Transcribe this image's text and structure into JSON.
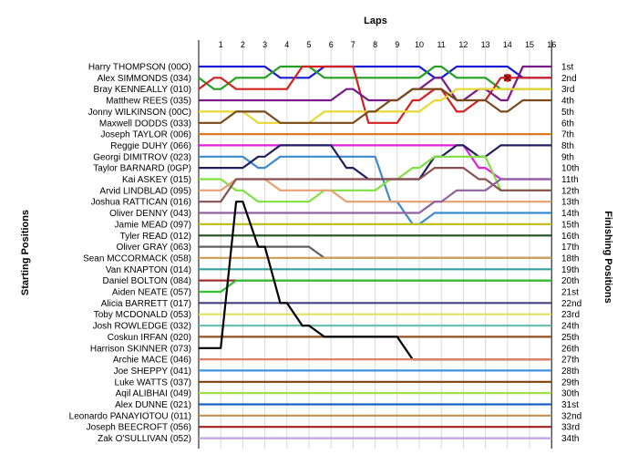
{
  "chart_data": {
    "type": "line",
    "title": "Laps",
    "xlabel": "Laps",
    "left_axis_title": "Starting Positions",
    "right_axis_title": "Finishing Positions",
    "laps": [
      "1",
      "2",
      "3",
      "4",
      "5",
      "6",
      "7",
      "8",
      "9",
      "10",
      "11",
      "12",
      "13",
      "14",
      "15",
      "16"
    ],
    "finishing_labels": [
      "1st",
      "2nd",
      "3rd",
      "4th",
      "5th",
      "6th",
      "7th",
      "8th",
      "9th",
      "10th",
      "11th",
      "12th",
      "13th",
      "14th",
      "15th",
      "16th",
      "17th",
      "18th",
      "19th",
      "20th",
      "21st",
      "22nd",
      "23rd",
      "24th",
      "25th",
      "26th",
      "27th",
      "28th",
      "29th",
      "30th",
      "31st",
      "32nd",
      "33rd",
      "34th"
    ],
    "grid": "vertical",
    "retirement_marker": {
      "lap": 14,
      "position": 2
    },
    "drivers": [
      {
        "name": "Harry THOMPSON (00O)",
        "color": "#1a1ad6",
        "positions": [
          1,
          1,
          1,
          2,
          2,
          1,
          1,
          1,
          1,
          1,
          2,
          1,
          1,
          1,
          2,
          2
        ]
      },
      {
        "name": "Alex SIMMONDS (034)",
        "color": "#22a022",
        "positions": [
          3,
          2,
          2,
          1,
          1,
          2,
          2,
          2,
          2,
          2,
          1,
          2,
          2,
          3,
          3,
          3
        ]
      },
      {
        "name": "Bray KENNEALLY (010)",
        "color": "#d42020",
        "positions": [
          2,
          3,
          3,
          3,
          1,
          1,
          1,
          6,
          6,
          4,
          3,
          5,
          4,
          2,
          2,
          2
        ]
      },
      {
        "name": "Matthew REES (035)",
        "color": "#7a1a8a",
        "positions": [
          4,
          4,
          4,
          4,
          4,
          4,
          3,
          4,
          4,
          3,
          2,
          4,
          3,
          4,
          1,
          1
        ]
      },
      {
        "name": "Jonny WILKINSON (00C)",
        "color": "#e8d830",
        "positions": [
          5,
          5,
          6,
          6,
          6,
          5,
          5,
          5,
          5,
          5,
          4,
          3,
          3,
          3,
          3,
          3
        ]
      },
      {
        "name": "Maxwell DODDS (033)",
        "color": "#7a4a1a",
        "positions": [
          6,
          5,
          5,
          6,
          6,
          6,
          6,
          5,
          4,
          3,
          3,
          4,
          4,
          5,
          4,
          4
        ]
      },
      {
        "name": "Joseph TAYLOR (006)",
        "color": "#e07820",
        "positions": [
          7,
          7,
          7,
          7,
          7,
          7,
          7,
          7,
          7,
          7,
          7,
          7,
          7,
          7,
          7,
          7
        ]
      },
      {
        "name": "Reggie DUHY (066)",
        "color": "#e020e0",
        "positions": [
          8,
          8,
          8,
          8,
          8,
          8,
          8,
          8,
          8,
          8,
          8,
          8,
          10,
          11,
          11,
          11
        ]
      },
      {
        "name": "Georgi DIMITROV (023)",
        "color": "#3a8ad0",
        "positions": [
          9,
          9,
          10,
          9,
          9,
          9,
          9,
          9,
          13,
          15,
          14,
          14,
          14,
          14,
          14,
          14
        ]
      },
      {
        "name": "Taylor BARNARD (0GP)",
        "color": "#202060",
        "positions": [
          10,
          10,
          9,
          8,
          8,
          8,
          10,
          11,
          11,
          11,
          9,
          8,
          9,
          8,
          8,
          8
        ]
      },
      {
        "name": "Kai ASKEY (015)",
        "color": "#80e040",
        "positions": [
          11,
          12,
          13,
          13,
          13,
          12,
          12,
          12,
          11,
          10,
          9,
          9,
          9,
          12,
          12,
          12
        ]
      },
      {
        "name": "Arvid LINDBLAD (095)",
        "color": "#e8a070",
        "positions": [
          12,
          11,
          11,
          12,
          12,
          12,
          13,
          13,
          13,
          13,
          13,
          13,
          13,
          13,
          13,
          13
        ]
      },
      {
        "name": "Joshua RATTICAN (016)",
        "color": "#8a5050",
        "positions": [
          13,
          11,
          11,
          11,
          11,
          11,
          11,
          11,
          11,
          11,
          10,
          10,
          11,
          12,
          12,
          12
        ]
      },
      {
        "name": "Oliver DENNY (043)",
        "color": "#9060a0",
        "positions": [
          14,
          14,
          14,
          14,
          14,
          14,
          14,
          14,
          14,
          14,
          13,
          12,
          12,
          11,
          11,
          11
        ]
      },
      {
        "name": "Jamie MEAD (097)",
        "color": "#c0c020",
        "positions": [
          15,
          15,
          15,
          15,
          15,
          15,
          15,
          15,
          15,
          15,
          15,
          15,
          15,
          15,
          15,
          15
        ]
      },
      {
        "name": "Tyler READ (012)",
        "color": "#205020",
        "positions": [
          16,
          16,
          16,
          16,
          16,
          16,
          16,
          16,
          16,
          16,
          16,
          16,
          16,
          16,
          16,
          16
        ]
      },
      {
        "name": "Oliver GRAY (063)",
        "color": "#606060",
        "positions": [
          17,
          17,
          17,
          17,
          17,
          18,
          18,
          18,
          18,
          18,
          18,
          18,
          18,
          18,
          18,
          18
        ]
      },
      {
        "name": "Sean MCCORMACK (058)",
        "color": "#d0a060",
        "positions": [
          18,
          18,
          18,
          18,
          18,
          18,
          18,
          18,
          18,
          18,
          18,
          18,
          18,
          18,
          18,
          18
        ]
      },
      {
        "name": "Van KNAPTON (014)",
        "color": "#30a0a0",
        "positions": [
          19,
          19,
          19,
          19,
          19,
          19,
          19,
          19,
          19,
          19,
          19,
          19,
          19,
          19,
          19,
          19
        ]
      },
      {
        "name": "Daniel BOLTON (084)",
        "color": "#a03030",
        "positions": [
          20,
          20,
          20,
          20,
          20,
          20,
          20,
          20,
          20,
          20,
          20,
          20,
          20,
          20,
          20,
          20
        ]
      },
      {
        "name": "Aiden NEATE (057)",
        "color": "#30c030",
        "positions": [
          21,
          20,
          20,
          20,
          20,
          20,
          20,
          20,
          20,
          20,
          20,
          20,
          20,
          20,
          20,
          20
        ]
      },
      {
        "name": "Alicia BARRETT (017)",
        "color": "#404080",
        "positions": [
          22,
          22,
          22,
          22,
          22,
          22,
          22,
          22,
          22,
          22,
          22,
          22,
          22,
          22,
          22,
          22
        ]
      },
      {
        "name": "Toby MCDONALD (053)",
        "color": "#e0e060",
        "positions": [
          23,
          23,
          23,
          23,
          23,
          23,
          23,
          23,
          23,
          23,
          23,
          23,
          23,
          23,
          23,
          23
        ]
      },
      {
        "name": "Josh ROWLEDGE (032)",
        "color": "#70c0b0",
        "positions": [
          24,
          24,
          24,
          24,
          24,
          24,
          24,
          24,
          24,
          24,
          24,
          24,
          24,
          24,
          24,
          24
        ]
      },
      {
        "name": "Coskun IRFAN (020)",
        "color": "#905020",
        "positions": [
          25,
          25,
          25,
          25,
          25,
          25,
          25,
          25,
          25,
          25,
          25,
          25,
          25,
          25,
          25,
          25
        ]
      },
      {
        "name": "Harrison SKINNER (073)",
        "color": "#000000",
        "positions": [
          26,
          13,
          17,
          22,
          24,
          25,
          25,
          25,
          25,
          27,
          27,
          27,
          27,
          27,
          27,
          27
        ]
      },
      {
        "name": "Archie MACE (046)",
        "color": "#e08060",
        "positions": [
          27,
          27,
          27,
          27,
          27,
          27,
          27,
          27,
          27,
          27,
          27,
          27,
          27,
          27,
          27,
          27
        ]
      },
      {
        "name": "Joe SHEPPY (041)",
        "color": "#4090e0",
        "positions": [
          28,
          28,
          28,
          28,
          28,
          28,
          28,
          28,
          28,
          28,
          28,
          28,
          28,
          28,
          28,
          28
        ]
      },
      {
        "name": "Luke WATTS (037)",
        "color": "#804000",
        "positions": [
          29,
          29,
          29,
          29,
          29,
          29,
          29,
          29,
          29,
          29,
          29,
          29,
          29,
          29,
          29,
          29
        ]
      },
      {
        "name": "Aqil ALIBHAI (049)",
        "color": "#a0e040",
        "positions": [
          30,
          30,
          30,
          30,
          30,
          30,
          30,
          30,
          30,
          30,
          30,
          30,
          30,
          30,
          30,
          30
        ]
      },
      {
        "name": "Alex DUNNE (021)",
        "color": "#1a60c0",
        "positions": [
          31,
          31,
          31,
          31,
          31,
          31,
          31,
          31,
          31,
          31,
          31,
          31,
          31,
          31,
          31,
          31
        ]
      },
      {
        "name": "Leonardo PANAYIOTOU (011)",
        "color": "#c09050",
        "positions": [
          32,
          32,
          32,
          32,
          32,
          32,
          32,
          32,
          32,
          32,
          32,
          32,
          32,
          32,
          32,
          32
        ]
      },
      {
        "name": "Joseph BEECROFT (056)",
        "color": "#a02020",
        "positions": [
          33,
          33,
          33,
          33,
          33,
          33,
          33,
          33,
          33,
          33,
          33,
          33,
          33,
          33,
          33,
          33
        ]
      },
      {
        "name": "Zak O'SULLIVAN (052)",
        "color": "#c0a0e0",
        "positions": [
          34,
          34,
          34,
          34,
          34,
          34,
          34,
          34,
          34,
          34,
          34,
          34,
          34,
          34,
          34,
          34
        ]
      }
    ]
  }
}
